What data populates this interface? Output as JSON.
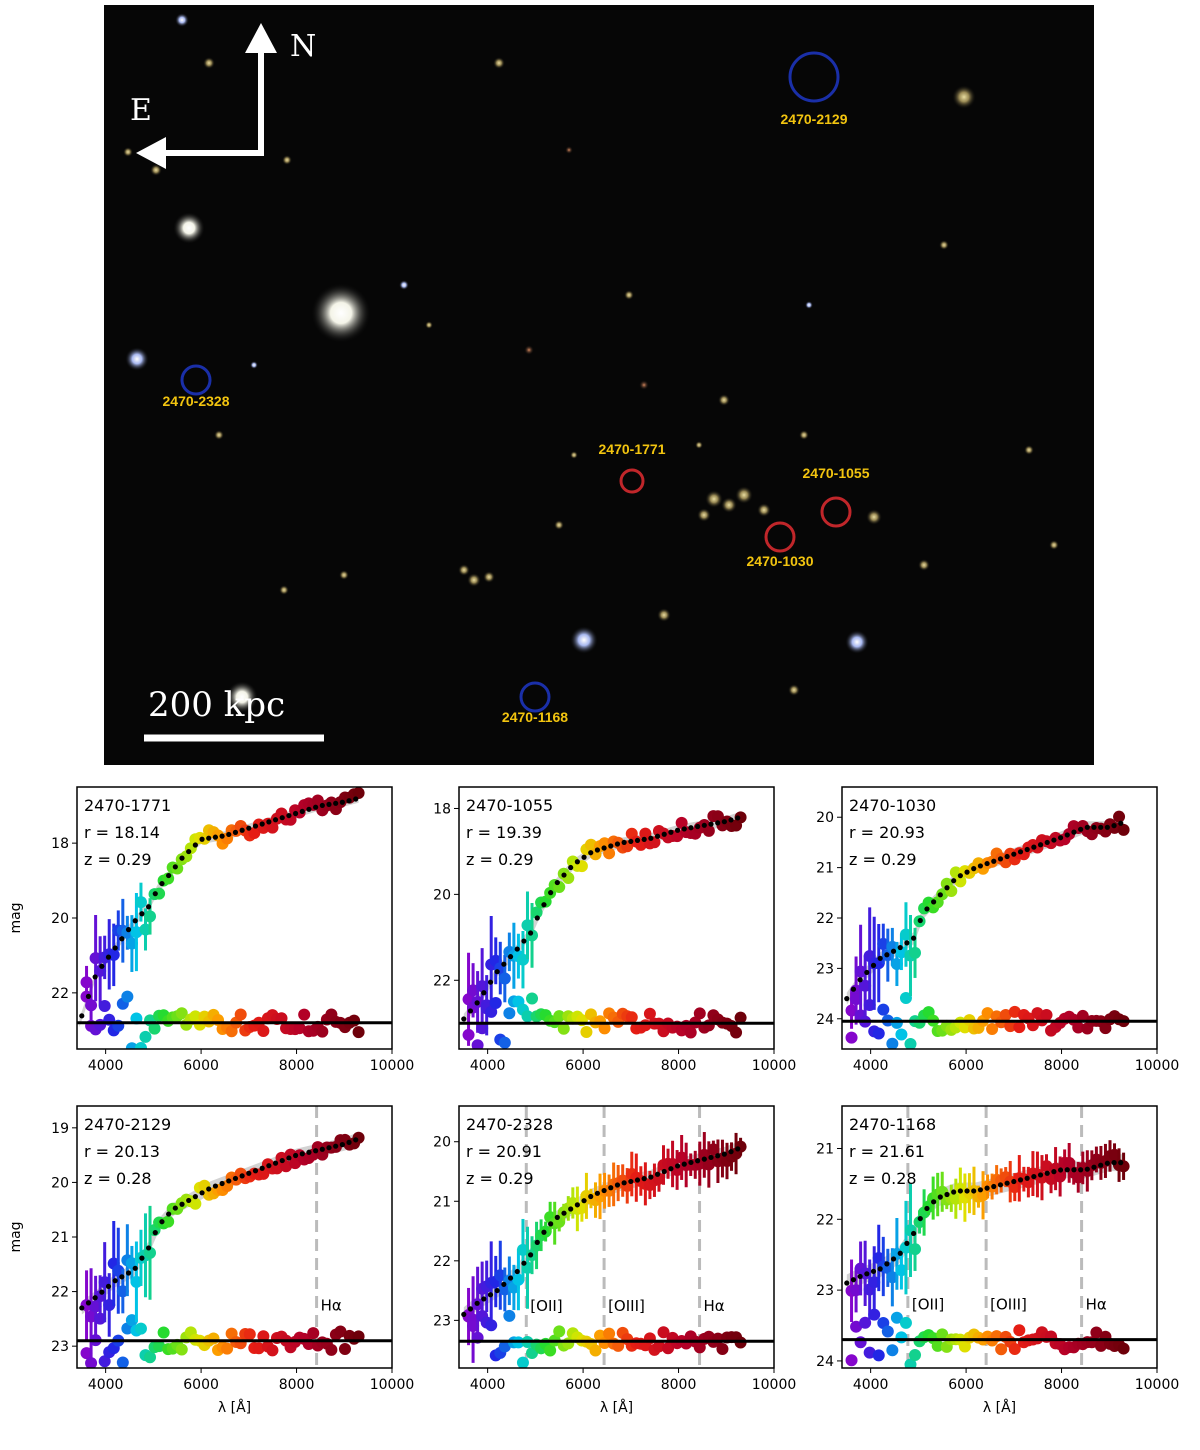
{
  "image": {
    "compass": {
      "north": "N",
      "east": "E"
    },
    "scale_bar": {
      "label": "200  kpc"
    },
    "sources": [
      {
        "id": "2470-2129",
        "circle_color": "#1a2fa8"
      },
      {
        "id": "2470-2328",
        "circle_color": "#1a2fa8"
      },
      {
        "id": "2470-1771",
        "circle_color": "#c0262a"
      },
      {
        "id": "2470-1055",
        "circle_color": "#c0262a"
      },
      {
        "id": "2470-1030",
        "circle_color": "#c0262a"
      },
      {
        "id": "2470-1168",
        "circle_color": "#1a2fa8"
      }
    ],
    "label_color": "#f2c40f"
  },
  "axis_labels": {
    "y": "mag",
    "x": "λ [Å]"
  },
  "chart_data": [
    {
      "type": "scatter",
      "id": "2470-1771",
      "r_text": "r = 18.14",
      "z_text": "z = 0.29",
      "xlim": [
        3400,
        10000
      ],
      "ylim": [
        23.5,
        16.5
      ],
      "xticks": [
        4000,
        6000,
        8000,
        10000
      ],
      "yticks": [
        18,
        20,
        22
      ],
      "residual_zero": 22.8,
      "spectrum_points": [
        [
          3450,
          22.8
        ],
        [
          3800,
          21.5
        ],
        [
          4200,
          20.8
        ],
        [
          4600,
          20.1
        ],
        [
          4900,
          19.7
        ],
        [
          5100,
          19.2
        ],
        [
          5300,
          18.9
        ],
        [
          5600,
          18.4
        ],
        [
          6000,
          17.9
        ],
        [
          6500,
          17.8
        ],
        [
          7000,
          17.6
        ],
        [
          7500,
          17.4
        ],
        [
          8000,
          17.2
        ],
        [
          8500,
          17.0
        ],
        [
          9000,
          16.9
        ],
        [
          9300,
          16.8
        ]
      ],
      "emission_lines": []
    },
    {
      "type": "scatter",
      "id": "2470-1055",
      "r_text": "r = 19.39",
      "z_text": "z = 0.29",
      "xlim": [
        3400,
        10000
      ],
      "ylim": [
        23.6,
        17.5
      ],
      "xticks": [
        4000,
        6000,
        8000,
        10000
      ],
      "yticks": [
        18,
        20,
        22
      ],
      "residual_zero": 23.0,
      "spectrum_points": [
        [
          3500,
          22.9
        ],
        [
          3800,
          22.5
        ],
        [
          4200,
          21.8
        ],
        [
          4600,
          21.3
        ],
        [
          4900,
          20.9
        ],
        [
          5100,
          20.4
        ],
        [
          5400,
          19.8
        ],
        [
          5800,
          19.3
        ],
        [
          6200,
          19.0
        ],
        [
          6800,
          18.8
        ],
        [
          7400,
          18.7
        ],
        [
          8000,
          18.5
        ],
        [
          8500,
          18.4
        ],
        [
          9000,
          18.3
        ],
        [
          9300,
          18.2
        ]
      ],
      "emission_lines": []
    },
    {
      "type": "scatter",
      "id": "2470-1030",
      "r_text": "r = 20.93",
      "z_text": "z = 0.29",
      "xlim": [
        3400,
        10000
      ],
      "ylim": [
        24.6,
        19.4
      ],
      "xticks": [
        4000,
        6000,
        8000,
        10000
      ],
      "yticks": [
        20,
        21,
        22,
        23,
        24
      ],
      "residual_zero": 24.05,
      "spectrum_points": [
        [
          3500,
          23.6
        ],
        [
          3800,
          23.2
        ],
        [
          4200,
          22.8
        ],
        [
          4600,
          22.6
        ],
        [
          4900,
          22.4
        ],
        [
          5100,
          21.9
        ],
        [
          5400,
          21.6
        ],
        [
          5800,
          21.2
        ],
        [
          6200,
          21.0
        ],
        [
          6800,
          20.8
        ],
        [
          7400,
          20.6
        ],
        [
          8000,
          20.4
        ],
        [
          8500,
          20.2
        ],
        [
          9000,
          20.2
        ],
        [
          9300,
          20.1
        ]
      ],
      "emission_lines": []
    },
    {
      "type": "scatter",
      "id": "2470-2129",
      "r_text": "r = 20.13",
      "z_text": "z = 0.28",
      "xlim": [
        3400,
        10000
      ],
      "ylim": [
        23.4,
        18.6
      ],
      "xticks": [
        4000,
        6000,
        8000,
        10000
      ],
      "yticks": [
        19,
        20,
        21,
        22,
        23
      ],
      "residual_zero": 22.9,
      "spectrum_points": [
        [
          3500,
          22.3
        ],
        [
          3800,
          22.1
        ],
        [
          4200,
          21.8
        ],
        [
          4600,
          21.6
        ],
        [
          4900,
          21.2
        ],
        [
          5100,
          20.8
        ],
        [
          5400,
          20.5
        ],
        [
          5800,
          20.3
        ],
        [
          6200,
          20.1
        ],
        [
          6800,
          19.9
        ],
        [
          7400,
          19.7
        ],
        [
          8000,
          19.5
        ],
        [
          8500,
          19.4
        ],
        [
          9000,
          19.3
        ],
        [
          9300,
          19.2
        ]
      ],
      "emission_lines": [
        {
          "label": "Hα",
          "wavelength": 8420
        }
      ]
    },
    {
      "type": "scatter",
      "id": "2470-2328",
      "r_text": "r = 20.91",
      "z_text": "z = 0.29",
      "xlim": [
        3400,
        10000
      ],
      "ylim": [
        23.8,
        19.4
      ],
      "xticks": [
        4000,
        6000,
        8000,
        10000
      ],
      "yticks": [
        20,
        21,
        22,
        23
      ],
      "residual_zero": 23.35,
      "spectrum_points": [
        [
          3500,
          22.9
        ],
        [
          3800,
          22.7
        ],
        [
          4200,
          22.5
        ],
        [
          4600,
          22.2
        ],
        [
          4900,
          21.9
        ],
        [
          5100,
          21.6
        ],
        [
          5400,
          21.3
        ],
        [
          5800,
          21.1
        ],
        [
          6200,
          20.9
        ],
        [
          6800,
          20.7
        ],
        [
          7400,
          20.6
        ],
        [
          8000,
          20.4
        ],
        [
          8500,
          20.3
        ],
        [
          9000,
          20.2
        ],
        [
          9300,
          20.1
        ]
      ],
      "emission_lines": [
        {
          "label": "[OII]",
          "wavelength": 4810
        },
        {
          "label": "[OIII]",
          "wavelength": 6440
        },
        {
          "label": "Hα",
          "wavelength": 8440
        }
      ]
    },
    {
      "type": "scatter",
      "id": "2470-1168",
      "r_text": "r = 21.61",
      "z_text": "z = 0.28",
      "xlim": [
        3400,
        10000
      ],
      "ylim": [
        24.1,
        20.4
      ],
      "xticks": [
        4000,
        6000,
        8000,
        10000
      ],
      "yticks": [
        21,
        22,
        23,
        24
      ],
      "residual_zero": 23.7,
      "spectrum_points": [
        [
          3500,
          22.9
        ],
        [
          3800,
          22.8
        ],
        [
          4200,
          22.7
        ],
        [
          4600,
          22.5
        ],
        [
          4900,
          22.2
        ],
        [
          5100,
          21.9
        ],
        [
          5400,
          21.7
        ],
        [
          5800,
          21.6
        ],
        [
          6200,
          21.6
        ],
        [
          6800,
          21.5
        ],
        [
          7400,
          21.4
        ],
        [
          8000,
          21.3
        ],
        [
          8500,
          21.3
        ],
        [
          9000,
          21.2
        ],
        [
          9300,
          21.2
        ]
      ],
      "emission_lines": [
        {
          "label": "[OII]",
          "wavelength": 4780
        },
        {
          "label": "[OIII]",
          "wavelength": 6420
        },
        {
          "label": "Hα",
          "wavelength": 8420
        }
      ]
    }
  ]
}
